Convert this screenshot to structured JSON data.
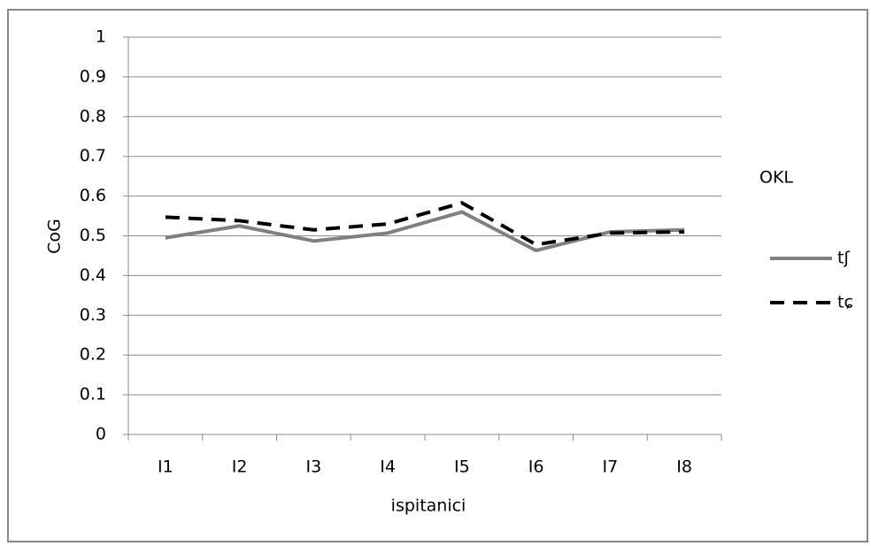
{
  "chart_data": {
    "type": "line",
    "x_label": "ispitanici",
    "y_label": "CoG",
    "categories": [
      "I1",
      "I2",
      "I3",
      "I4",
      "I5",
      "I6",
      "I7",
      "I8"
    ],
    "series": [
      {
        "name": "tʃ",
        "color": "#808080",
        "dash": "solid",
        "values": [
          0.495,
          0.525,
          0.487,
          0.507,
          0.56,
          0.463,
          0.51,
          0.515
        ]
      },
      {
        "name": "tɕ",
        "color": "#000000",
        "dash": "dashed",
        "values": [
          0.547,
          0.538,
          0.515,
          0.53,
          0.583,
          0.478,
          0.507,
          0.51
        ]
      }
    ],
    "legend_title": "OKL",
    "legend": "right",
    "ylim": [
      0,
      1
    ],
    "yticks": [
      0,
      0.1,
      0.2,
      0.3,
      0.4,
      0.5,
      0.6,
      0.7,
      0.8,
      0.9,
      1
    ],
    "grid": true
  }
}
